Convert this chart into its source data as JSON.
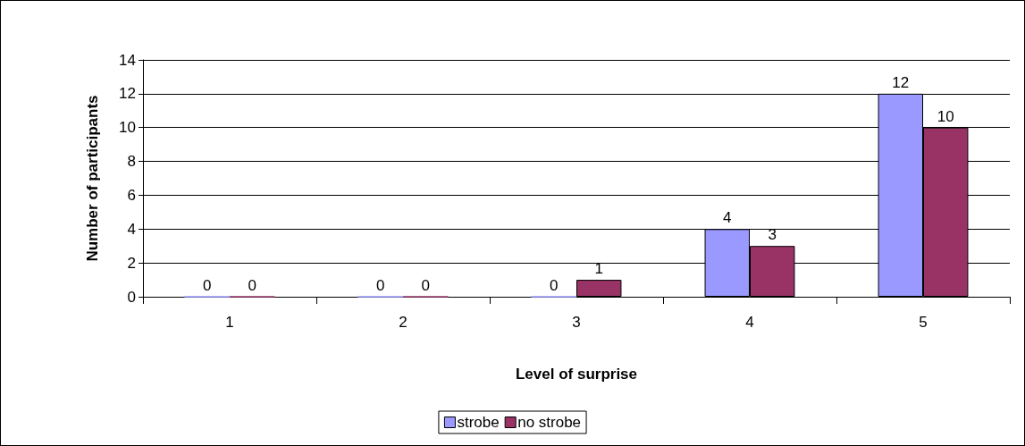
{
  "chart_data": {
    "type": "bar",
    "xlabel": "Level of surprise",
    "ylabel": "Number of participants",
    "categories": [
      "1",
      "2",
      "3",
      "4",
      "5"
    ],
    "series": [
      {
        "name": "strobe",
        "color": "#9999ff",
        "values": [
          0,
          0,
          0,
          4,
          12
        ]
      },
      {
        "name": "no strobe",
        "color": "#993366",
        "values": [
          0,
          0,
          1,
          3,
          10
        ]
      }
    ],
    "ylim": [
      0,
      14
    ],
    "yticks": [
      0,
      2,
      4,
      6,
      8,
      10,
      12,
      14
    ],
    "grid": "y",
    "legend": "bottom",
    "data_labels": true
  }
}
